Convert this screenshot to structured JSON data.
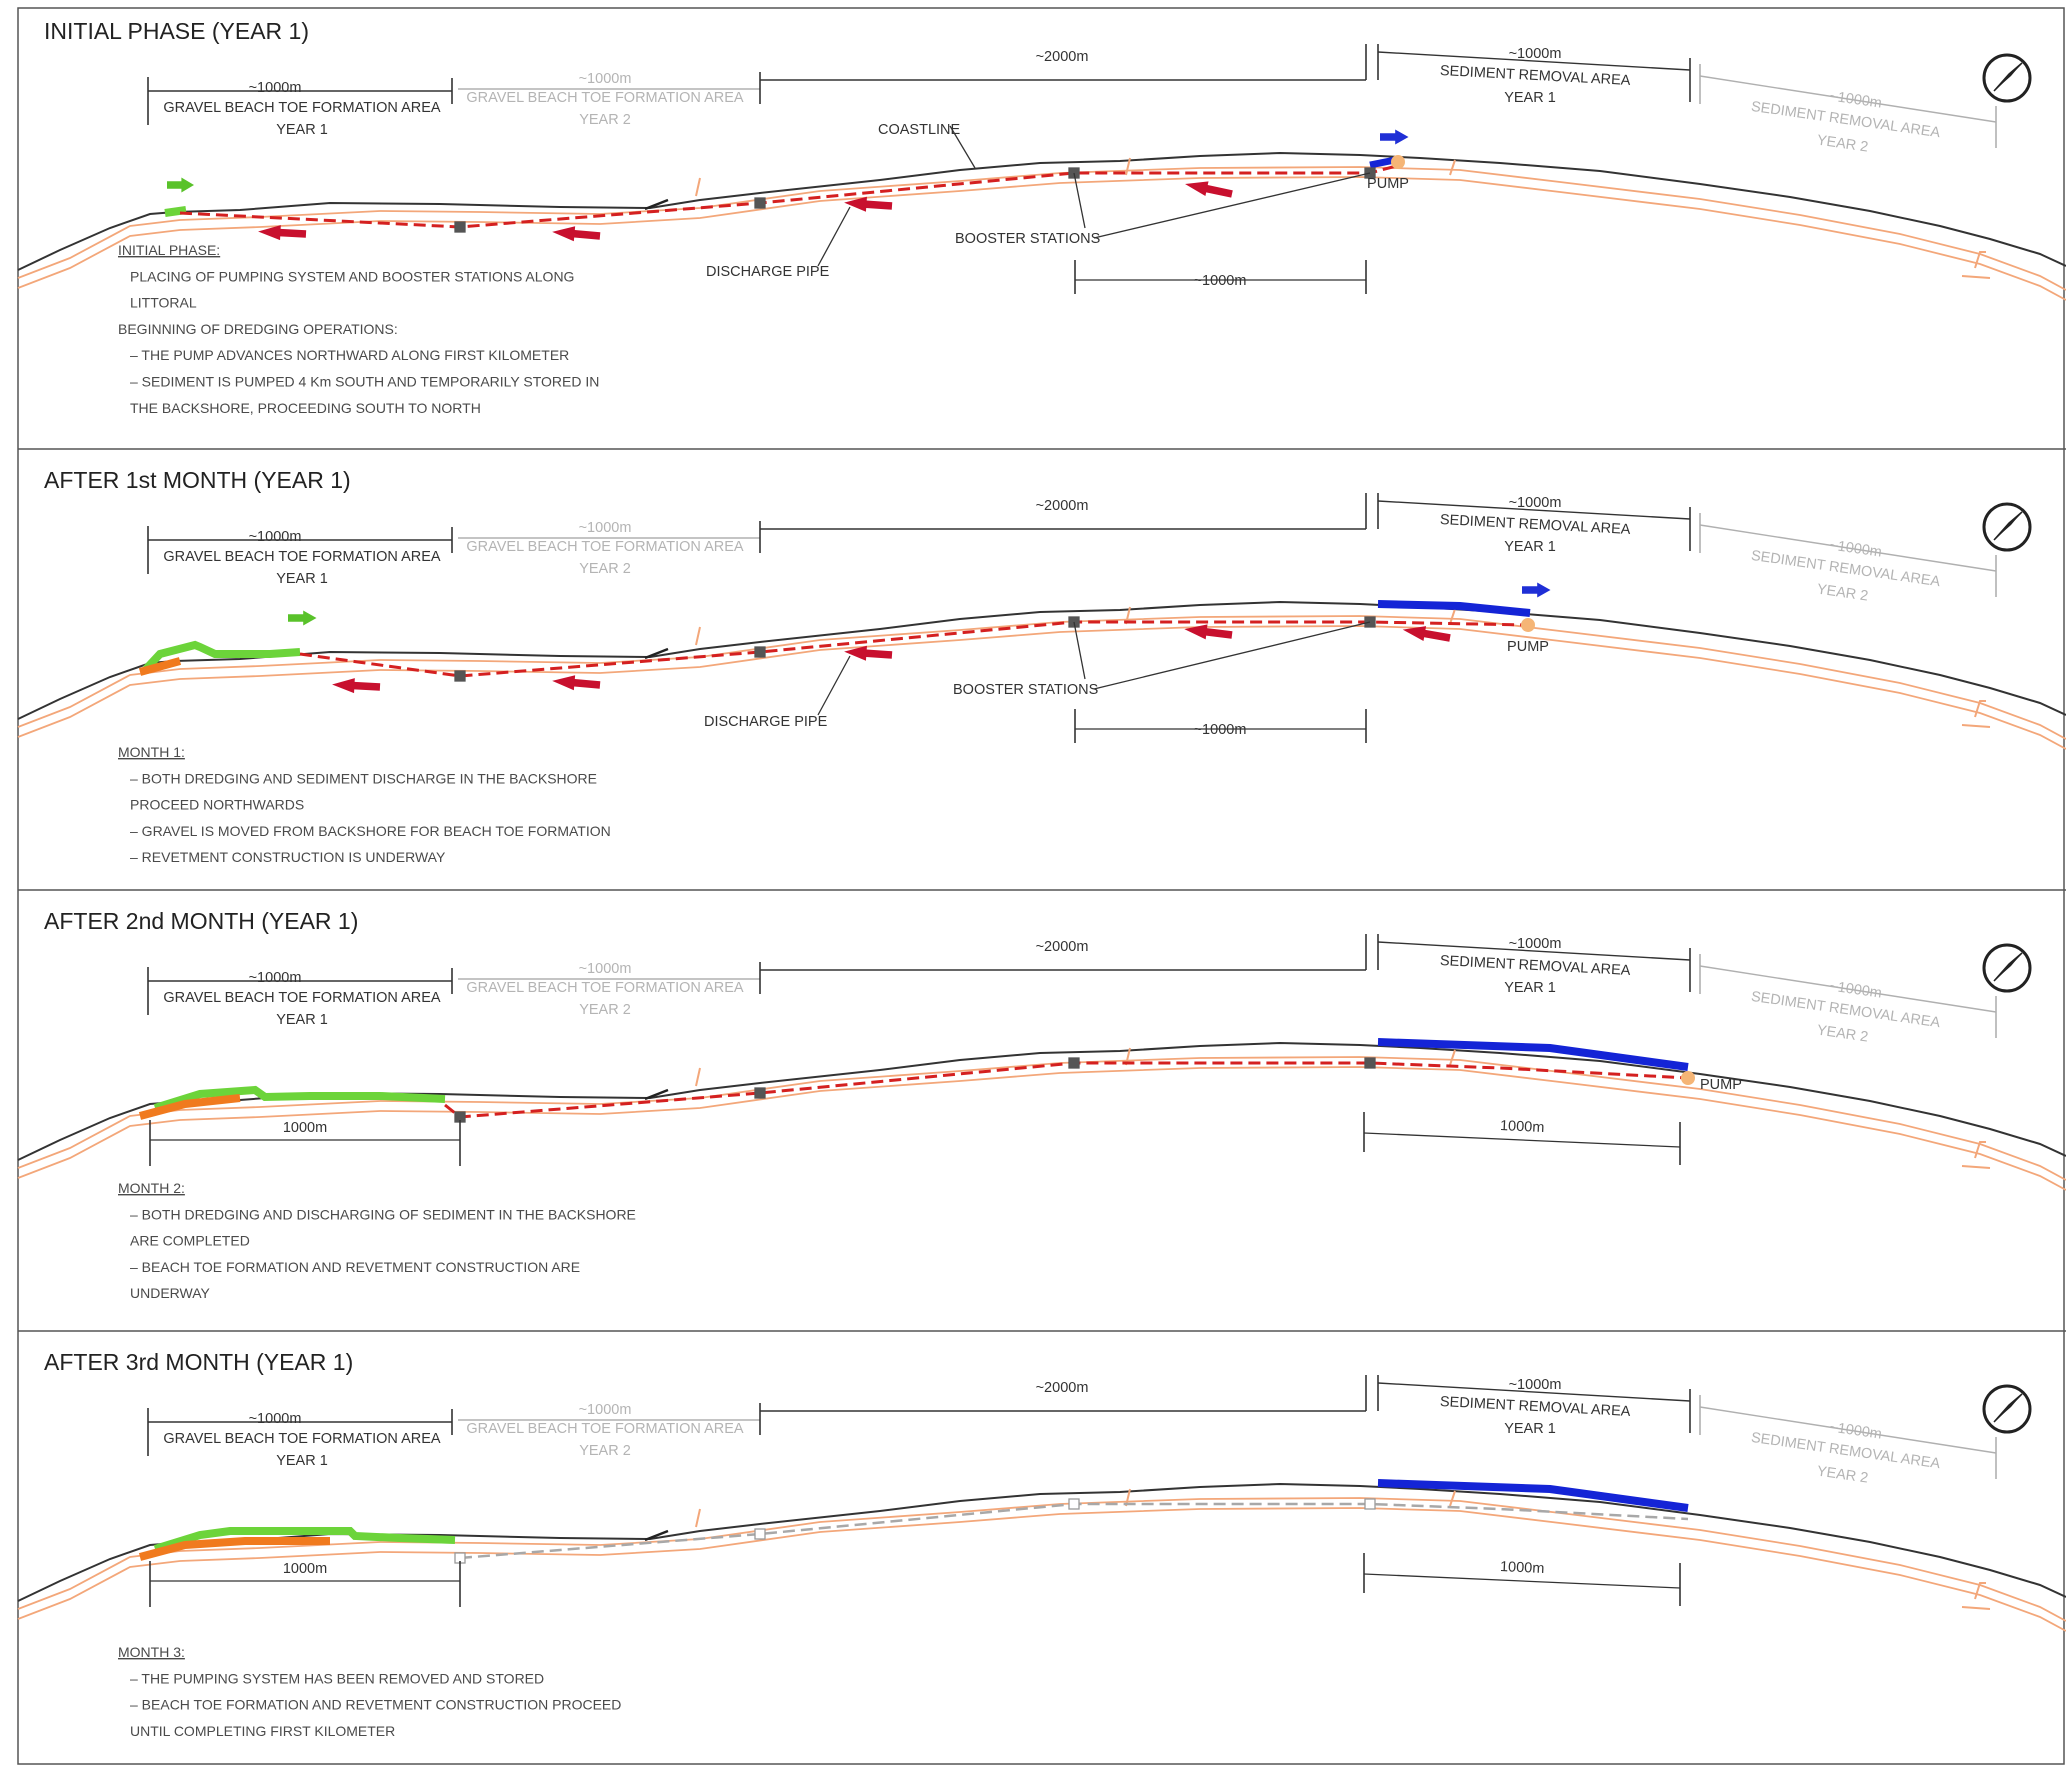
{
  "colors": {
    "coastline": "#333333",
    "pipe": "#d42020",
    "pipe_removed": "#a8a8a8",
    "arrow_flow": "#c8102e",
    "arrow_north_green": "#59c22a",
    "arrow_pump_blue": "#1f2fd6",
    "removal_area": "#1424d6",
    "gravel_toe": "#6cd43a",
    "revetment": "#f07a1e",
    "backshore": "#f3a77a",
    "pump": "#f5b576",
    "frame": "#555555"
  },
  "icons": {
    "north_arrow": "north-arrow-compass-icon"
  },
  "labels": {
    "dim_1000": "~1000m",
    "dim_2000": "~2000m",
    "gravel_area": "GRAVEL BEACH TOE FORMATION AREA",
    "removal_area": "SEDIMENT REMOVAL AREA",
    "year1": "YEAR 1",
    "year2": "YEAR 2",
    "coastline": "COASTLINE",
    "booster_stations": "BOOSTER STATIONS",
    "discharge_pipe": "DISCHARGE PIPE",
    "pump": "PUMP",
    "dim_plain": "1000m"
  },
  "panels": [
    {
      "title": "INITIAL PHASE (YEAR 1)",
      "notes_heading": "INITIAL PHASE:",
      "notes": [
        "PLACING OF PUMPING SYSTEM AND BOOSTER STATIONS ALONG",
        "LITTORAL",
        "BEGINNING OF DREDGING OPERATIONS:",
        "– THE PUMP ADVANCES NORTHWARD ALONG FIRST KILOMETER",
        "– SEDIMENT IS PUMPED 4 Km SOUTH AND TEMPORARILY STORED IN",
        "THE BACKSHORE, PROCEEDING SOUTH TO NORTH"
      ]
    },
    {
      "title": "AFTER 1st MONTH (YEAR 1)",
      "notes_heading": "MONTH 1:",
      "notes": [
        "– BOTH DREDGING AND SEDIMENT DISCHARGE IN THE BACKSHORE",
        "PROCEED NORTHWARDS",
        "– GRAVEL IS MOVED FROM BACKSHORE FOR BEACH TOE FORMATION",
        "– REVETMENT CONSTRUCTION IS UNDERWAY"
      ]
    },
    {
      "title": "AFTER 2nd MONTH (YEAR 1)",
      "notes_heading": "MONTH 2:",
      "notes": [
        "– BOTH DREDGING AND DISCHARGING OF SEDIMENT IN THE BACKSHORE",
        "ARE COMPLETED",
        "– BEACH TOE FORMATION AND REVETMENT CONSTRUCTION ARE",
        "UNDERWAY"
      ]
    },
    {
      "title": "AFTER 3rd MONTH (YEAR 1)",
      "notes_heading": "MONTH 3:",
      "notes": [
        "– THE PUMPING SYSTEM HAS BEEN REMOVED AND STORED",
        "– BEACH TOE FORMATION AND REVETMENT CONSTRUCTION PROCEED",
        "UNTIL COMPLETING FIRST KILOMETER"
      ]
    }
  ]
}
